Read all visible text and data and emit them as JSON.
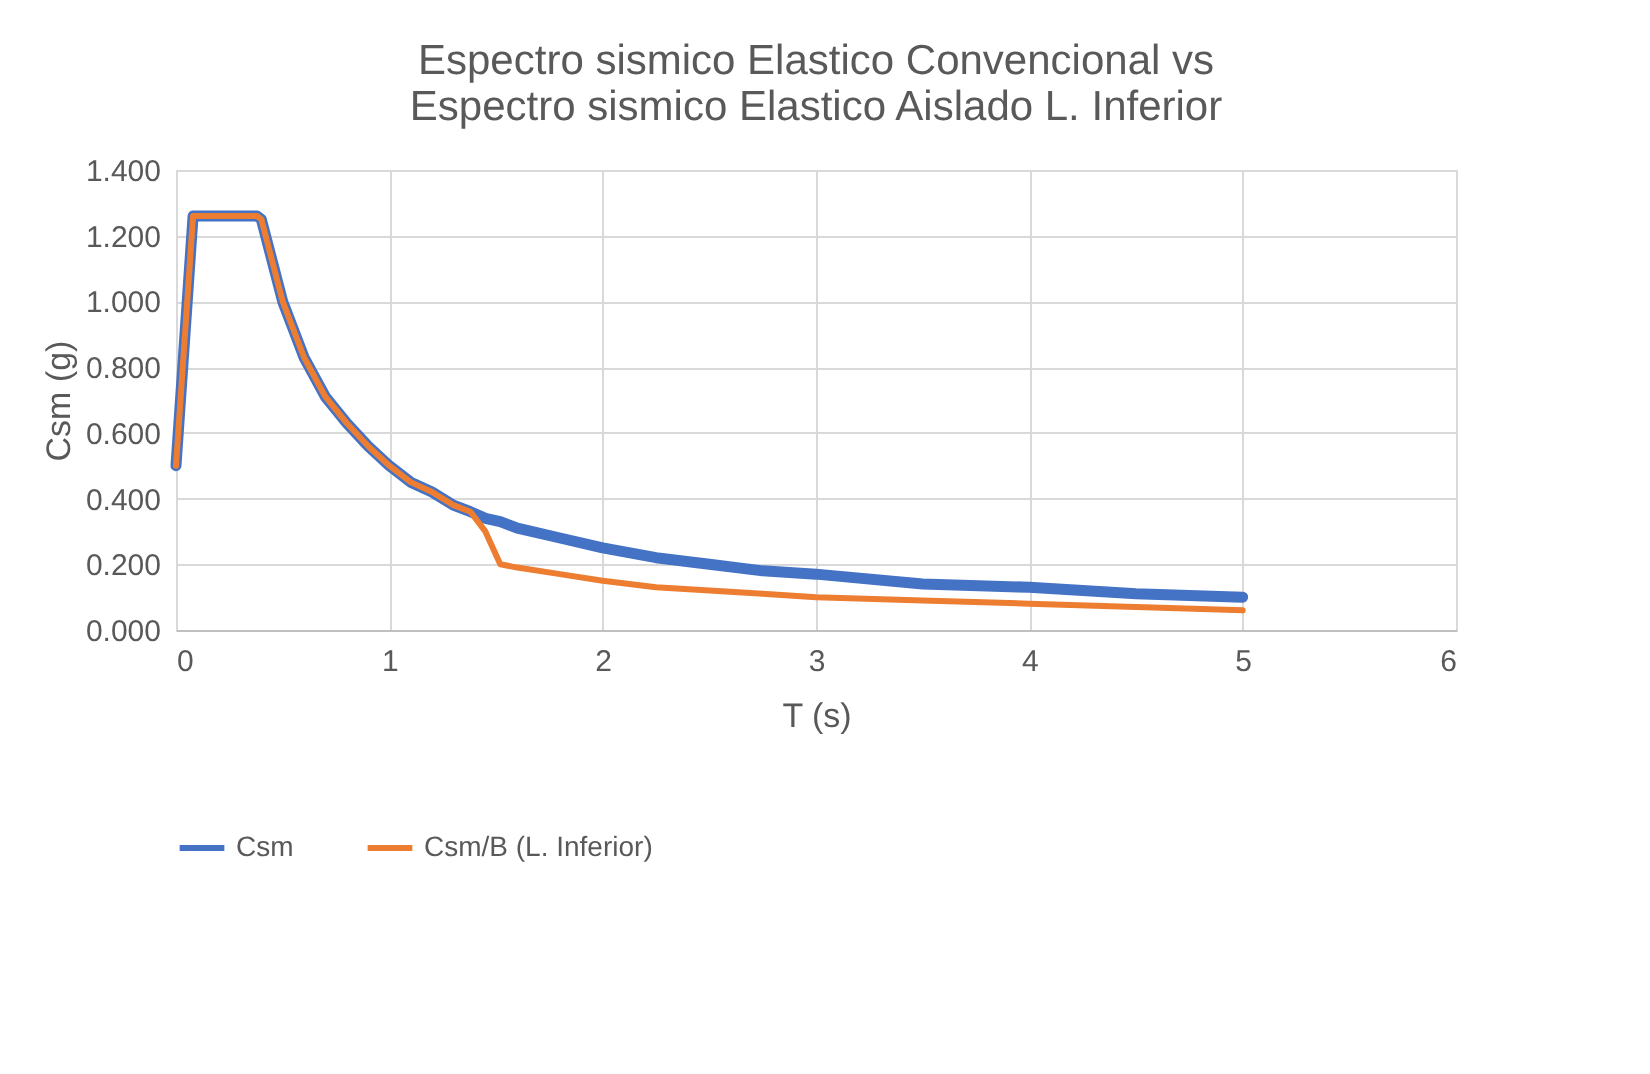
{
  "chart_data": {
    "type": "line",
    "title": "Espectro sismico Elastico Convencional vs\nEspectro sismico Elastico Aislado L. Inferior",
    "xlabel": "T (s)",
    "ylabel": "Csm (g)",
    "x": [
      0,
      0.08,
      0.2,
      0.3,
      0.38,
      0.4,
      0.5,
      0.6,
      0.7,
      0.8,
      0.9,
      1.0,
      1.1,
      1.2,
      1.3,
      1.38,
      1.45,
      1.52,
      1.6,
      1.8,
      2.0,
      2.25,
      2.5,
      2.75,
      3.0,
      3.5,
      4.0,
      4.5,
      5.0
    ],
    "series": [
      {
        "name": "Csm",
        "color": "#4472c4",
        "values": [
          0.5,
          1.26,
          1.26,
          1.26,
          1.26,
          1.25,
          1.0,
          0.83,
          0.71,
          0.63,
          0.56,
          0.5,
          0.45,
          0.42,
          0.38,
          0.36,
          0.34,
          0.33,
          0.31,
          0.28,
          0.25,
          0.22,
          0.2,
          0.18,
          0.17,
          0.14,
          0.13,
          0.11,
          0.1
        ]
      },
      {
        "name": "Csm/B (L. Inferior)",
        "color": "#ed7d31",
        "values": [
          0.5,
          1.26,
          1.26,
          1.26,
          1.26,
          1.25,
          1.0,
          0.83,
          0.71,
          0.63,
          0.56,
          0.5,
          0.45,
          0.42,
          0.38,
          0.36,
          0.3,
          0.2,
          0.19,
          0.17,
          0.15,
          0.13,
          0.12,
          0.11,
          0.1,
          0.09,
          0.08,
          0.07,
          0.06
        ]
      }
    ],
    "xlim": [
      0,
      6
    ],
    "xticks": [
      0,
      1,
      2,
      3,
      4,
      5,
      6
    ],
    "ylim": [
      0,
      1.4
    ],
    "yticks": [
      {
        "value": 0,
        "label": "0.000"
      },
      {
        "value": 0.2,
        "label": "0.200"
      },
      {
        "value": 0.4,
        "label": "0.400"
      },
      {
        "value": 0.6,
        "label": "0.600"
      },
      {
        "value": 0.8,
        "label": "0.800"
      },
      {
        "value": 1.0,
        "label": "1.000"
      },
      {
        "value": 1.2,
        "label": "1.200"
      },
      {
        "value": 1.4,
        "label": "1.400"
      }
    ],
    "grid": true,
    "legend": "bottom",
    "line_style": "solid",
    "marker": "none"
  }
}
